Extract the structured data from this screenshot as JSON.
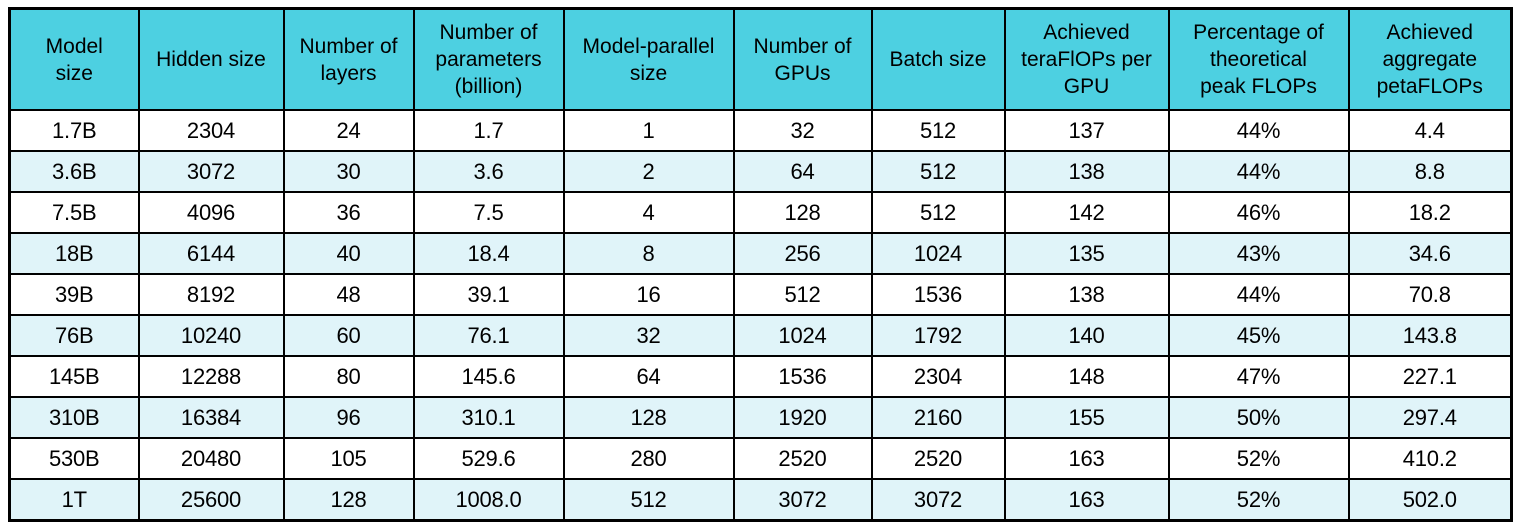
{
  "colors": {
    "header_bg": "#4dd0e1",
    "row_bg": "#ffffff",
    "row_alt_bg": "#e0f4f9",
    "border": "#000000",
    "text": "#000000",
    "page_bg": "#ffffff"
  },
  "header_lines": [
    "Model\nsize",
    "Hidden size",
    "Number of\nlayers",
    "Number of\nparameters\n(billion)",
    "Model-parallel\nsize",
    "Number of\nGPUs",
    "Batch size",
    "Achieved\nteraFlOPs per\nGPU",
    "Percentage of\ntheoretical\npeak FLOPs",
    "Achieved\naggregate\npetaFLOPs"
  ],
  "chart_data": {
    "type": "table",
    "columns": [
      "Model size",
      "Hidden size",
      "Number of layers",
      "Number of parameters (billion)",
      "Model-parallel size",
      "Number of GPUs",
      "Batch size",
      "Achieved teraFlOPs per GPU",
      "Percentage of theoretical peak FLOPs",
      "Achieved aggregate petaFLOPs"
    ],
    "rows": [
      [
        "1.7B",
        "2304",
        "24",
        "1.7",
        "1",
        "32",
        "512",
        "137",
        "44%",
        "4.4"
      ],
      [
        "3.6B",
        "3072",
        "30",
        "3.6",
        "2",
        "64",
        "512",
        "138",
        "44%",
        "8.8"
      ],
      [
        "7.5B",
        "4096",
        "36",
        "7.5",
        "4",
        "128",
        "512",
        "142",
        "46%",
        "18.2"
      ],
      [
        "18B",
        "6144",
        "40",
        "18.4",
        "8",
        "256",
        "1024",
        "135",
        "43%",
        "34.6"
      ],
      [
        "39B",
        "8192",
        "48",
        "39.1",
        "16",
        "512",
        "1536",
        "138",
        "44%",
        "70.8"
      ],
      [
        "76B",
        "10240",
        "60",
        "76.1",
        "32",
        "1024",
        "1792",
        "140",
        "45%",
        "143.8"
      ],
      [
        "145B",
        "12288",
        "80",
        "145.6",
        "64",
        "1536",
        "2304",
        "148",
        "47%",
        "227.1"
      ],
      [
        "310B",
        "16384",
        "96",
        "310.1",
        "128",
        "1920",
        "2160",
        "155",
        "50%",
        "297.4"
      ],
      [
        "530B",
        "20480",
        "105",
        "529.6",
        "280",
        "2520",
        "2520",
        "163",
        "52%",
        "410.2"
      ],
      [
        "1T",
        "25600",
        "128",
        "1008.0",
        "512",
        "3072",
        "3072",
        "163",
        "52%",
        "502.0"
      ]
    ],
    "layout": {
      "grid": "on",
      "striped_rows": true,
      "header_position": "top"
    }
  }
}
